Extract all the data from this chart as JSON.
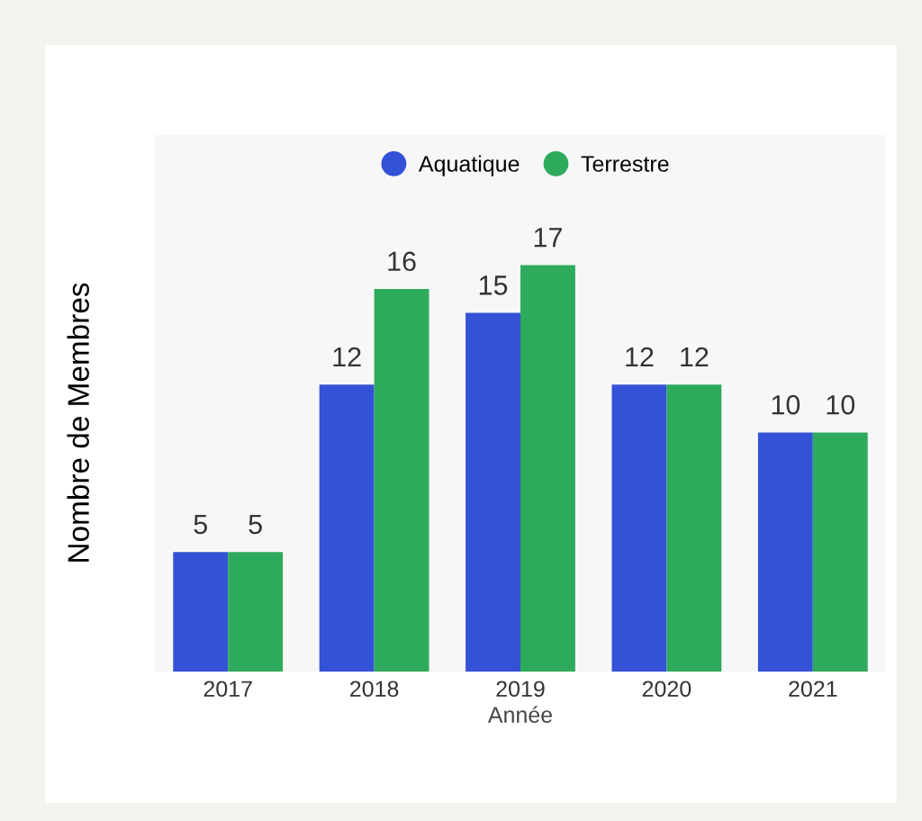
{
  "chart_data": {
    "type": "bar",
    "xlabel": "Année",
    "ylabel": "Nombre de Membres",
    "categories": [
      "2017",
      "2018",
      "2019",
      "2020",
      "2021"
    ],
    "series": [
      {
        "name": "Aquatique",
        "color": "#3352d6",
        "values": [
          5,
          12,
          15,
          12,
          10
        ]
      },
      {
        "name": "Terrestre",
        "color": "#2eaa5c",
        "values": [
          5,
          16,
          17,
          12,
          10
        ]
      }
    ],
    "data_labels": true,
    "legend": "top",
    "grid": false,
    "tick_labels": "x"
  }
}
